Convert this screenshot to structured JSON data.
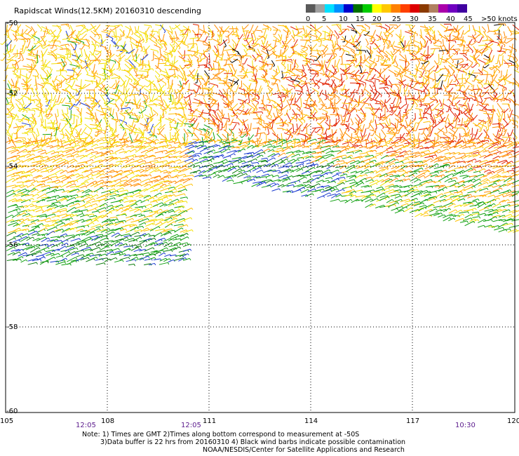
{
  "title": "Rapidscat Winds(12.5KM) 20160310 descending",
  "colorbar": {
    "colors": [
      "#5a5a5a",
      "#a0a0a0",
      "#00e0ff",
      "#0090ff",
      "#0000cc",
      "#007000",
      "#00cc00",
      "#ffff00",
      "#ffc800",
      "#ff8000",
      "#ff4000",
      "#dd0000",
      "#8b3a00",
      "#b08060",
      "#aa00aa",
      "#7000c0",
      "#4000a0"
    ],
    "labels": [
      "0",
      "5",
      "10",
      "15",
      "20",
      "25",
      "30",
      "35",
      "40",
      "45",
      ">50 knots"
    ]
  },
  "axes": {
    "lat_labels": [
      "-50",
      "-52",
      "-54",
      "-56",
      "-58",
      "-60"
    ],
    "lon_labels": [
      "105",
      "108",
      "111",
      "114",
      "117",
      "120"
    ]
  },
  "times": [
    "12:05",
    "12:05",
    "10:30"
  ],
  "notes": {
    "line1": "Note: 1) Times are GMT 2)Times along bottom correspond to measurement at -50S",
    "line2": "3)Data buffer is 22 hrs from 20160310 4) Black wind barbs indicate possible contamination",
    "line3": "NOAA/NESDIS/Center for Satellite Applications and Research"
  }
}
